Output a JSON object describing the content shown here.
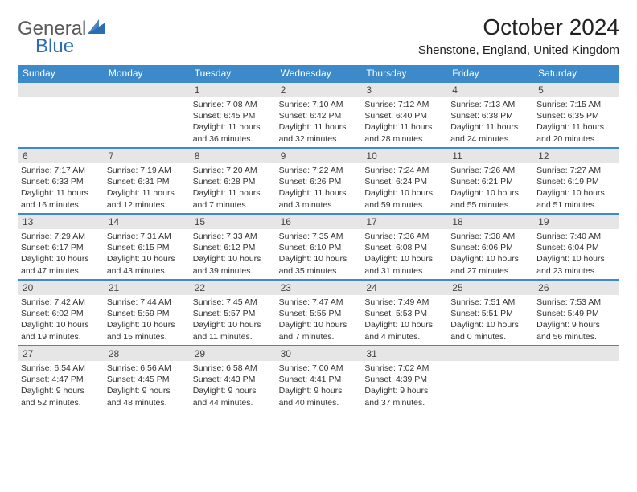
{
  "logo": {
    "text_general": "General",
    "text_blue": "Blue",
    "general_color": "#5a5a5a",
    "blue_color": "#2a6db4",
    "icon_fill": "#2a6db4"
  },
  "title": "October 2024",
  "location": "Shenstone, England, United Kingdom",
  "colors": {
    "header_bg": "#3c8ac9",
    "header_text": "#ffffff",
    "daynum_bg": "#e6e6e6",
    "border": "#3c8ac9",
    "body_text": "#333333"
  },
  "daysOfWeek": [
    "Sunday",
    "Monday",
    "Tuesday",
    "Wednesday",
    "Thursday",
    "Friday",
    "Saturday"
  ],
  "weeks": [
    [
      {
        "num": "",
        "sunrise": "",
        "sunset": "",
        "daylight1": "",
        "daylight2": ""
      },
      {
        "num": "",
        "sunrise": "",
        "sunset": "",
        "daylight1": "",
        "daylight2": ""
      },
      {
        "num": "1",
        "sunrise": "Sunrise: 7:08 AM",
        "sunset": "Sunset: 6:45 PM",
        "daylight1": "Daylight: 11 hours",
        "daylight2": "and 36 minutes."
      },
      {
        "num": "2",
        "sunrise": "Sunrise: 7:10 AM",
        "sunset": "Sunset: 6:42 PM",
        "daylight1": "Daylight: 11 hours",
        "daylight2": "and 32 minutes."
      },
      {
        "num": "3",
        "sunrise": "Sunrise: 7:12 AM",
        "sunset": "Sunset: 6:40 PM",
        "daylight1": "Daylight: 11 hours",
        "daylight2": "and 28 minutes."
      },
      {
        "num": "4",
        "sunrise": "Sunrise: 7:13 AM",
        "sunset": "Sunset: 6:38 PM",
        "daylight1": "Daylight: 11 hours",
        "daylight2": "and 24 minutes."
      },
      {
        "num": "5",
        "sunrise": "Sunrise: 7:15 AM",
        "sunset": "Sunset: 6:35 PM",
        "daylight1": "Daylight: 11 hours",
        "daylight2": "and 20 minutes."
      }
    ],
    [
      {
        "num": "6",
        "sunrise": "Sunrise: 7:17 AM",
        "sunset": "Sunset: 6:33 PM",
        "daylight1": "Daylight: 11 hours",
        "daylight2": "and 16 minutes."
      },
      {
        "num": "7",
        "sunrise": "Sunrise: 7:19 AM",
        "sunset": "Sunset: 6:31 PM",
        "daylight1": "Daylight: 11 hours",
        "daylight2": "and 12 minutes."
      },
      {
        "num": "8",
        "sunrise": "Sunrise: 7:20 AM",
        "sunset": "Sunset: 6:28 PM",
        "daylight1": "Daylight: 11 hours",
        "daylight2": "and 7 minutes."
      },
      {
        "num": "9",
        "sunrise": "Sunrise: 7:22 AM",
        "sunset": "Sunset: 6:26 PM",
        "daylight1": "Daylight: 11 hours",
        "daylight2": "and 3 minutes."
      },
      {
        "num": "10",
        "sunrise": "Sunrise: 7:24 AM",
        "sunset": "Sunset: 6:24 PM",
        "daylight1": "Daylight: 10 hours",
        "daylight2": "and 59 minutes."
      },
      {
        "num": "11",
        "sunrise": "Sunrise: 7:26 AM",
        "sunset": "Sunset: 6:21 PM",
        "daylight1": "Daylight: 10 hours",
        "daylight2": "and 55 minutes."
      },
      {
        "num": "12",
        "sunrise": "Sunrise: 7:27 AM",
        "sunset": "Sunset: 6:19 PM",
        "daylight1": "Daylight: 10 hours",
        "daylight2": "and 51 minutes."
      }
    ],
    [
      {
        "num": "13",
        "sunrise": "Sunrise: 7:29 AM",
        "sunset": "Sunset: 6:17 PM",
        "daylight1": "Daylight: 10 hours",
        "daylight2": "and 47 minutes."
      },
      {
        "num": "14",
        "sunrise": "Sunrise: 7:31 AM",
        "sunset": "Sunset: 6:15 PM",
        "daylight1": "Daylight: 10 hours",
        "daylight2": "and 43 minutes."
      },
      {
        "num": "15",
        "sunrise": "Sunrise: 7:33 AM",
        "sunset": "Sunset: 6:12 PM",
        "daylight1": "Daylight: 10 hours",
        "daylight2": "and 39 minutes."
      },
      {
        "num": "16",
        "sunrise": "Sunrise: 7:35 AM",
        "sunset": "Sunset: 6:10 PM",
        "daylight1": "Daylight: 10 hours",
        "daylight2": "and 35 minutes."
      },
      {
        "num": "17",
        "sunrise": "Sunrise: 7:36 AM",
        "sunset": "Sunset: 6:08 PM",
        "daylight1": "Daylight: 10 hours",
        "daylight2": "and 31 minutes."
      },
      {
        "num": "18",
        "sunrise": "Sunrise: 7:38 AM",
        "sunset": "Sunset: 6:06 PM",
        "daylight1": "Daylight: 10 hours",
        "daylight2": "and 27 minutes."
      },
      {
        "num": "19",
        "sunrise": "Sunrise: 7:40 AM",
        "sunset": "Sunset: 6:04 PM",
        "daylight1": "Daylight: 10 hours",
        "daylight2": "and 23 minutes."
      }
    ],
    [
      {
        "num": "20",
        "sunrise": "Sunrise: 7:42 AM",
        "sunset": "Sunset: 6:02 PM",
        "daylight1": "Daylight: 10 hours",
        "daylight2": "and 19 minutes."
      },
      {
        "num": "21",
        "sunrise": "Sunrise: 7:44 AM",
        "sunset": "Sunset: 5:59 PM",
        "daylight1": "Daylight: 10 hours",
        "daylight2": "and 15 minutes."
      },
      {
        "num": "22",
        "sunrise": "Sunrise: 7:45 AM",
        "sunset": "Sunset: 5:57 PM",
        "daylight1": "Daylight: 10 hours",
        "daylight2": "and 11 minutes."
      },
      {
        "num": "23",
        "sunrise": "Sunrise: 7:47 AM",
        "sunset": "Sunset: 5:55 PM",
        "daylight1": "Daylight: 10 hours",
        "daylight2": "and 7 minutes."
      },
      {
        "num": "24",
        "sunrise": "Sunrise: 7:49 AM",
        "sunset": "Sunset: 5:53 PM",
        "daylight1": "Daylight: 10 hours",
        "daylight2": "and 4 minutes."
      },
      {
        "num": "25",
        "sunrise": "Sunrise: 7:51 AM",
        "sunset": "Sunset: 5:51 PM",
        "daylight1": "Daylight: 10 hours",
        "daylight2": "and 0 minutes."
      },
      {
        "num": "26",
        "sunrise": "Sunrise: 7:53 AM",
        "sunset": "Sunset: 5:49 PM",
        "daylight1": "Daylight: 9 hours",
        "daylight2": "and 56 minutes."
      }
    ],
    [
      {
        "num": "27",
        "sunrise": "Sunrise: 6:54 AM",
        "sunset": "Sunset: 4:47 PM",
        "daylight1": "Daylight: 9 hours",
        "daylight2": "and 52 minutes."
      },
      {
        "num": "28",
        "sunrise": "Sunrise: 6:56 AM",
        "sunset": "Sunset: 4:45 PM",
        "daylight1": "Daylight: 9 hours",
        "daylight2": "and 48 minutes."
      },
      {
        "num": "29",
        "sunrise": "Sunrise: 6:58 AM",
        "sunset": "Sunset: 4:43 PM",
        "daylight1": "Daylight: 9 hours",
        "daylight2": "and 44 minutes."
      },
      {
        "num": "30",
        "sunrise": "Sunrise: 7:00 AM",
        "sunset": "Sunset: 4:41 PM",
        "daylight1": "Daylight: 9 hours",
        "daylight2": "and 40 minutes."
      },
      {
        "num": "31",
        "sunrise": "Sunrise: 7:02 AM",
        "sunset": "Sunset: 4:39 PM",
        "daylight1": "Daylight: 9 hours",
        "daylight2": "and 37 minutes."
      },
      {
        "num": "",
        "sunrise": "",
        "sunset": "",
        "daylight1": "",
        "daylight2": ""
      },
      {
        "num": "",
        "sunrise": "",
        "sunset": "",
        "daylight1": "",
        "daylight2": ""
      }
    ]
  ]
}
